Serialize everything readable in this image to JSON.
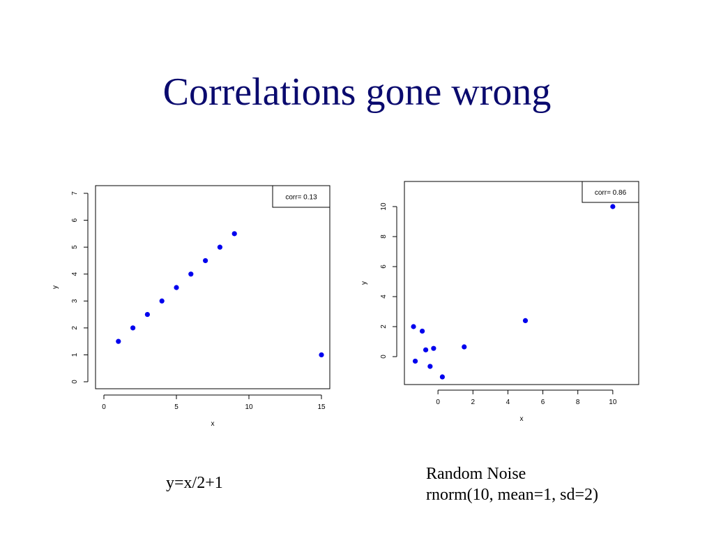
{
  "title": "Correlations gone wrong",
  "captions": {
    "left": "y=x/2+1",
    "right_line1": "Random Noise",
    "right_line2": "rnorm(10, mean=1, sd=2)"
  },
  "colors": {
    "title": "#0a0a6e",
    "points": "#0000ee"
  },
  "chart_data": [
    {
      "type": "scatter",
      "xlabel": "x",
      "ylabel": "y",
      "xlim": [
        0,
        15
      ],
      "ylim": [
        0,
        7
      ],
      "xticks": [
        0,
        5,
        10,
        15
      ],
      "yticks": [
        0,
        1,
        2,
        3,
        4,
        5,
        6,
        7
      ],
      "legend": {
        "text": "corr= 0.13",
        "placement": "top-right"
      },
      "x": [
        1,
        2,
        3,
        4,
        5,
        6,
        7,
        8,
        9,
        15
      ],
      "y": [
        1.5,
        2,
        2.5,
        3,
        3.5,
        4,
        4.5,
        5,
        5.5,
        1
      ]
    },
    {
      "type": "scatter",
      "xlabel": "x",
      "ylabel": "y",
      "xlim": [
        -2,
        12
      ],
      "ylim": [
        -2,
        12
      ],
      "xticks": [
        0,
        2,
        4,
        6,
        8,
        10
      ],
      "yticks": [
        0,
        2,
        4,
        6,
        8,
        10
      ],
      "legend": {
        "text": "corr= 0.86",
        "placement": "top-right"
      },
      "x": [
        -1.4,
        -1.3,
        -0.9,
        -0.7,
        -0.45,
        -0.25,
        0.25,
        1.5,
        5.0,
        10.0
      ],
      "y": [
        2.0,
        -0.3,
        1.7,
        0.45,
        -0.65,
        0.55,
        -1.35,
        0.65,
        2.4,
        10.0
      ]
    }
  ]
}
